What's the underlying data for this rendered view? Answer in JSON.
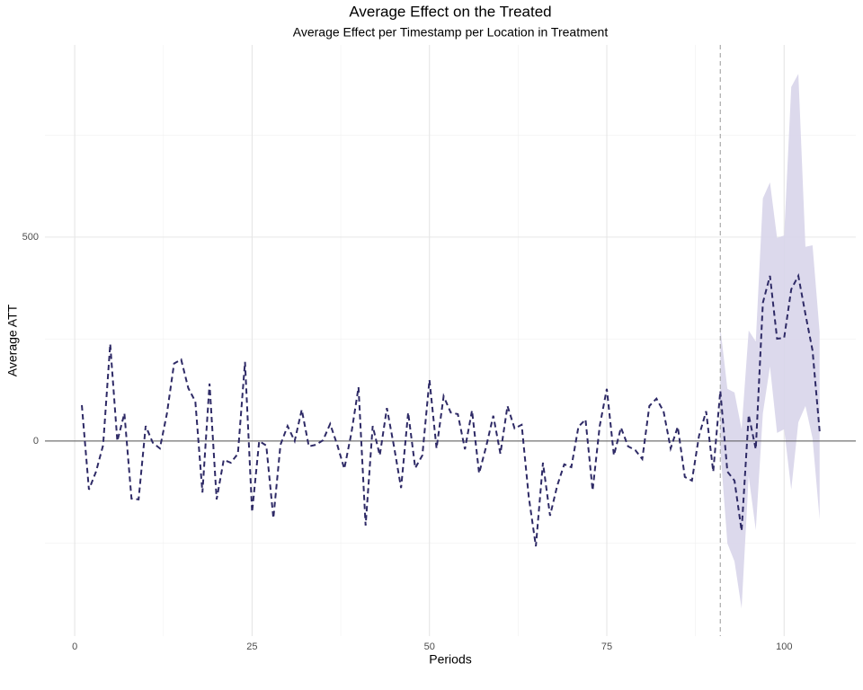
{
  "chart_data": {
    "type": "line",
    "title": "Average Effect on the Treated",
    "subtitle": "Average Effect per Timestamp per Location in Treatment",
    "x_label": "Periods",
    "y_label": "Average ATT",
    "x": [
      1,
      2,
      3,
      4,
      5,
      6,
      7,
      8,
      9,
      10,
      11,
      12,
      13,
      14,
      15,
      16,
      17,
      18,
      19,
      20,
      21,
      22,
      23,
      24,
      25,
      26,
      27,
      28,
      29,
      30,
      31,
      32,
      33,
      34,
      35,
      36,
      37,
      38,
      39,
      40,
      41,
      42,
      43,
      44,
      45,
      46,
      47,
      48,
      49,
      50,
      51,
      52,
      53,
      54,
      55,
      56,
      57,
      58,
      59,
      60,
      61,
      62,
      63,
      64,
      65,
      66,
      67,
      68,
      69,
      70,
      71,
      72,
      73,
      74,
      75,
      76,
      77,
      78,
      79,
      80,
      81,
      82,
      83,
      84,
      85,
      86,
      87,
      88,
      89,
      90,
      91,
      92,
      93,
      94,
      95,
      96,
      97,
      98,
      99,
      100,
      101,
      102,
      103,
      104,
      105
    ],
    "values": [
      88,
      -119,
      -75,
      -10,
      238,
      0,
      68,
      -141,
      -143,
      37,
      -4,
      -18,
      68,
      190,
      200,
      130,
      97,
      -126,
      141,
      -143,
      -46,
      -53,
      -31,
      194,
      -174,
      0,
      -11,
      -189,
      -9,
      37,
      0,
      77,
      -13,
      -9,
      2,
      42,
      -9,
      -68,
      20,
      132,
      -207,
      37,
      -35,
      81,
      -13,
      -115,
      70,
      -66,
      -35,
      150,
      -18,
      110,
      70,
      66,
      -20,
      75,
      -79,
      -13,
      62,
      -31,
      86,
      31,
      40,
      -137,
      -258,
      -53,
      -183,
      -110,
      -57,
      -64,
      35,
      53,
      -121,
      37,
      128,
      -35,
      33,
      -13,
      -22,
      -44,
      86,
      104,
      73,
      -18,
      35,
      -88,
      -97,
      13,
      73,
      -75,
      123,
      -75,
      -97,
      -220,
      64,
      -20,
      339,
      405,
      251,
      253,
      372,
      405,
      311,
      222,
      24
    ],
    "color": "#2e2a66",
    "band": {
      "x": [
        91,
        92,
        93,
        94,
        95,
        96,
        97,
        98,
        99,
        100,
        101,
        102,
        103,
        104,
        105
      ],
      "lower": [
        -20,
        -251,
        -295,
        -410,
        -86,
        -218,
        68,
        183,
        20,
        29,
        -119,
        46,
        86,
        7,
        -192
      ],
      "upper": [
        278,
        128,
        119,
        29,
        271,
        244,
        595,
        634,
        498,
        504,
        868,
        900,
        476,
        480,
        267
      ],
      "color": "#d8d5ea"
    },
    "vline": 91,
    "hline": 0,
    "xlim": [
      -4.2,
      110.1
    ],
    "ylim": [
      -478,
      971
    ],
    "xticks": [
      0,
      25,
      50,
      75,
      100
    ],
    "yticks": [
      0,
      500
    ],
    "xminorticks": [
      12.5,
      37.5,
      62.5,
      87.5
    ],
    "yminorticks": [
      -250,
      250,
      750
    ],
    "grid": true
  }
}
